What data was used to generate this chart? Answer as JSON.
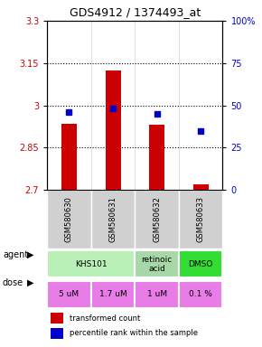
{
  "title": "GDS4912 / 1374493_at",
  "samples": [
    "GSM580630",
    "GSM580631",
    "GSM580632",
    "GSM580633"
  ],
  "bar_values": [
    2.935,
    3.125,
    2.93,
    2.72
  ],
  "bar_bottom": 2.7,
  "percentile_values": [
    46,
    48,
    45,
    35
  ],
  "ylim_left": [
    2.7,
    3.3
  ],
  "ylim_right": [
    0,
    100
  ],
  "yticks_left": [
    2.7,
    2.85,
    3.0,
    3.15,
    3.3
  ],
  "ytick_labels_left": [
    "2.7",
    "2.85",
    "3",
    "3.15",
    "3.3"
  ],
  "yticks_right": [
    0,
    25,
    50,
    75,
    100
  ],
  "ytick_labels_right": [
    "0",
    "25",
    "50",
    "75",
    "100%"
  ],
  "hlines": [
    2.85,
    3.0,
    3.15
  ],
  "agent_data": [
    {
      "start": 0,
      "end": 2,
      "label": "KHS101",
      "color": "#b8f0b8"
    },
    {
      "start": 2,
      "end": 3,
      "label": "retinoic\nacid",
      "color": "#a8d8a8"
    },
    {
      "start": 3,
      "end": 4,
      "label": "DMSO",
      "color": "#33dd33"
    }
  ],
  "dose_labels": [
    "5 uM",
    "1.7 uM",
    "1 uM",
    "0.1 %"
  ],
  "dose_color": "#e87de8",
  "bar_color": "#cc0000",
  "dot_color": "#0000cc",
  "label_left_color": "#cc0000",
  "label_right_color": "#0000cc",
  "sample_bg": "#d0d0d0",
  "legend_bar_label": "transformed count",
  "legend_dot_label": "percentile rank within the sample"
}
